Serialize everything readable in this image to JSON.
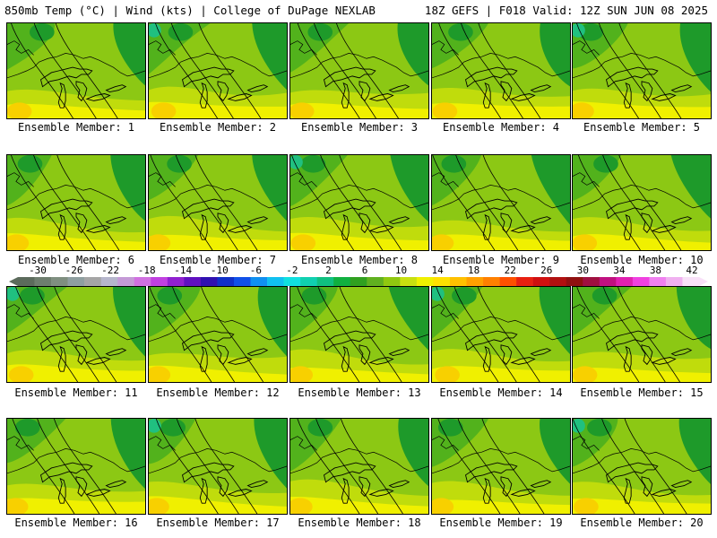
{
  "header": {
    "left": "850mb Temp (°C) | Wind (kts) | College of DuPage NEXLAB",
    "right": "18Z GEFS | F018 Valid: 12Z SUN JUN 08 2025"
  },
  "members": [
    "Ensemble Member: 1",
    "Ensemble Member: 2",
    "Ensemble Member: 3",
    "Ensemble Member: 4",
    "Ensemble Member: 5",
    "Ensemble Member: 6",
    "Ensemble Member: 7",
    "Ensemble Member: 8",
    "Ensemble Member: 9",
    "Ensemble Member: 10",
    "Ensemble Member: 11",
    "Ensemble Member: 12",
    "Ensemble Member: 13",
    "Ensemble Member: 14",
    "Ensemble Member: 15",
    "Ensemble Member: 16",
    "Ensemble Member: 17",
    "Ensemble Member: 18",
    "Ensemble Member: 19",
    "Ensemble Member: 20"
  ],
  "colorbar": {
    "tick_labels": [
      "-30",
      "-26",
      "-22",
      "-18",
      "-14",
      "-10",
      "-6",
      "-2",
      "2",
      "6",
      "10",
      "14",
      "18",
      "22",
      "26",
      "30",
      "34",
      "38",
      "42"
    ],
    "colors": [
      "#5c6b5c",
      "#6e7e6e",
      "#7f8f80",
      "#8f9fa0",
      "#a5a5a5",
      "#b6b6cc",
      "#c49ad6",
      "#d070e0",
      "#c040e0",
      "#9020d0",
      "#6010c0",
      "#3010b0",
      "#1030c8",
      "#1050e8",
      "#1090f0",
      "#10c0f0",
      "#10e0e0",
      "#10d0b0",
      "#10c080",
      "#10b040",
      "#30a020",
      "#60b020",
      "#90c810",
      "#c8e010",
      "#f0f000",
      "#ffe000",
      "#ffc000",
      "#ffa000",
      "#ff8000",
      "#ff5000",
      "#e82010",
      "#d01010",
      "#b01010",
      "#901010",
      "#a01040",
      "#c01080",
      "#e020b0",
      "#f040e0",
      "#f080f0",
      "#f0b0f0",
      "#f8e0f8"
    ]
  },
  "map_colors": {
    "cool_green": "#1e9a2a",
    "mid_green": "#52b21c",
    "light_green": "#8cc814",
    "yellow_green": "#c0dc0c",
    "yellow": "#f0f000",
    "orange_yellow": "#f8d000",
    "teal": "#20c080",
    "lines": "#000000"
  }
}
